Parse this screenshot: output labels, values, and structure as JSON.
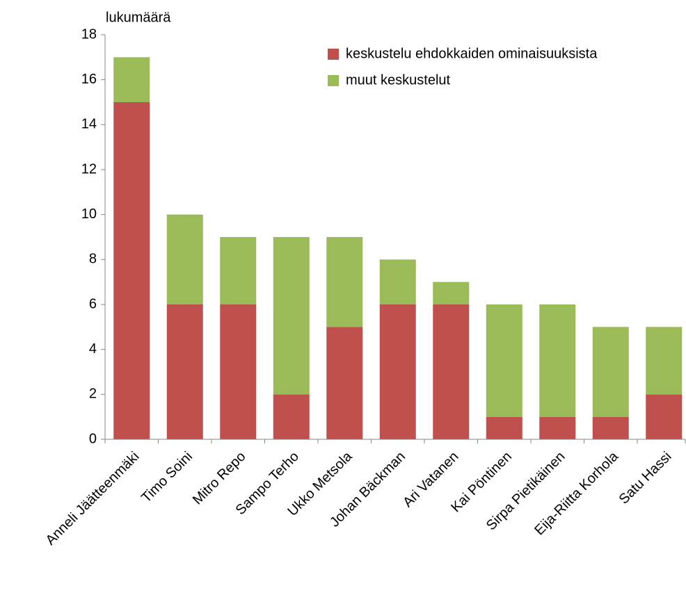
{
  "chart_data": {
    "type": "stacked_bar",
    "y_axis_label": "lukumäärä",
    "categories": [
      "Anneli Jäätteenmäki",
      "Timo Soini",
      "Mitro Repo",
      "Sampo Terho",
      "Ukko Metsola",
      "Johan Bäckman",
      "Ari Vatanen",
      "Kai Pöntinen",
      "Sirpa Pietikäinen",
      "Eija-Riitta Korhola",
      "Satu Hassi"
    ],
    "series": [
      {
        "name": "keskustelu ehdokkaiden ominaisuuksista",
        "color": "#c0504d",
        "values": [
          15,
          6,
          6,
          2,
          5,
          6,
          6,
          1,
          1,
          1,
          2
        ]
      },
      {
        "name": "muut keskustelut",
        "color": "#9bbb59",
        "values": [
          2,
          4,
          3,
          7,
          4,
          2,
          1,
          5,
          5,
          4,
          3
        ]
      }
    ],
    "ylim": [
      0,
      18
    ],
    "yticks": [
      0,
      2,
      4,
      6,
      8,
      10,
      12,
      14,
      16,
      18
    ],
    "legend": "top-right",
    "grid": false
  }
}
